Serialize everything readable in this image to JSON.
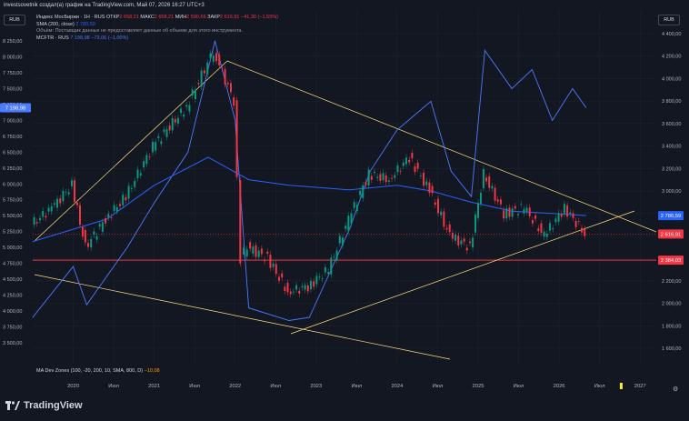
{
  "header": {
    "credit": "investsovetnik создал(а) график на TradingView.com, Май 07, 2026 16:27 UTC+3"
  },
  "legend": {
    "symbol": "Индекс МосБиржи · 1Н · RUS",
    "otkr_label": "ОТКР",
    "otkr_value": "2 658,21",
    "maks_label": "МАКС",
    "maks_value": "2 658,21",
    "min_label": "МИН",
    "min_value": "2 590,66",
    "zakr_label": "ЗАКР",
    "zakr_value": "2 616,91",
    "change": "−41,30 (−1,55%)",
    "sma_label": "SMA (200, close)",
    "sma_value": "2 780,59",
    "volume_note": "Объём: Поставщик данных не предоставляет данные об объеме для этого инструмента.",
    "mcftr_label": "MCFTR · RUS",
    "mcftr_value": "7 198,98",
    "mcftr_change": "−73,06 (−1,00%)"
  },
  "indicator_legend": {
    "label": "MA Dev Zones (100, -20, 200, 10, SMA, 800, D)",
    "value": "−10,08"
  },
  "currency_left": "RUB",
  "currency_right": "RUB",
  "left_axis": [
    "8 250,00",
    "8 000,00",
    "7 750,00",
    "7 500,00",
    "7 250,00",
    "7 000,00",
    "6 750,00",
    "6 500,00",
    "6 250,00",
    "6 000,00",
    "5 750,00",
    "5 500,00",
    "5 250,00",
    "5 000,00",
    "4 750,00",
    "4 500,00",
    "4 250,00",
    "4 000,00",
    "3 750,00",
    "3 500,00"
  ],
  "right_axis": [
    "4 400,00",
    "4 200,00",
    "4 000,00",
    "3 800,00",
    "3 600,00",
    "3 400,00",
    "3 200,00",
    "3 000,00",
    "2 800,00",
    "2 600,00",
    "2 400,00",
    "2 200,00",
    "2 000,00",
    "1 800,00",
    "1 600,00"
  ],
  "time_axis": [
    "2020",
    "Июл",
    "2021",
    "Июл",
    "2022",
    "Июл",
    "2023",
    "Июл",
    "2024",
    "Июл",
    "2025",
    "Июл",
    "2026",
    "Июл",
    "2027"
  ],
  "price_tags": {
    "mcftr_left": "7 198,98",
    "sma": "2 780,59",
    "close": "2 616,91",
    "level": "2 384,03"
  },
  "colors": {
    "up": "#089981",
    "down": "#f23645",
    "sma": "#2962ff",
    "mcftr": "#4c7bff",
    "trend": "#ffe082",
    "level": "#f23645"
  },
  "brand": "TradingView",
  "chart_data": {
    "type": "line",
    "title": "",
    "series": [
      {
        "name": "Индекс МосБиржи",
        "x": [
          "2019-07",
          "2019-10",
          "2020-01",
          "2020-03",
          "2020-06",
          "2020-09",
          "2021-01",
          "2021-06",
          "2021-10",
          "2022-01",
          "2022-02",
          "2022-03",
          "2022-06",
          "2022-09",
          "2022-12",
          "2023-03",
          "2023-06",
          "2023-09",
          "2023-12",
          "2024-03",
          "2024-06",
          "2024-09",
          "2024-12",
          "2025-02",
          "2025-05",
          "2025-08",
          "2025-11",
          "2026-02",
          "2026-05"
        ],
        "values": [
          2700,
          2850,
          3050,
          2500,
          2750,
          2950,
          3400,
          3750,
          4250,
          3800,
          2400,
          2500,
          2400,
          2100,
          2150,
          2300,
          2750,
          3150,
          3100,
          3300,
          3000,
          2600,
          2500,
          3150,
          2800,
          2850,
          2600,
          2850,
          2617
        ]
      },
      {
        "name": "MCFTR",
        "x": [
          "2019-07",
          "2020-01",
          "2020-03",
          "2020-09",
          "2021-01",
          "2021-06",
          "2021-10",
          "2022-01",
          "2022-03",
          "2022-09",
          "2022-12",
          "2023-06",
          "2023-09",
          "2024-01",
          "2024-06",
          "2024-09",
          "2024-12",
          "2025-02",
          "2025-06",
          "2025-09",
          "2025-12",
          "2026-03",
          "2026-05"
        ],
        "values": [
          3900,
          4700,
          4100,
          5000,
          5700,
          6500,
          8250,
          7000,
          4050,
          3850,
          3900,
          5300,
          6200,
          6850,
          7300,
          6200,
          5800,
          8100,
          7500,
          7800,
          7000,
          7500,
          7199
        ]
      },
      {
        "name": "SMA (200, close)",
        "x": [
          "2019-07",
          "2020-06",
          "2021-01",
          "2021-09",
          "2022-03",
          "2022-09",
          "2023-06",
          "2024-01",
          "2024-06",
          "2024-12",
          "2025-06",
          "2025-12",
          "2026-05"
        ],
        "values": [
          2550,
          2750,
          3050,
          3300,
          3100,
          3050,
          3010,
          3050,
          3000,
          2900,
          2820,
          2800,
          2781
        ]
      }
    ],
    "levels": [
      {
        "name": "level",
        "value": 2384.03
      }
    ],
    "ylim_left": [
      3500,
      8250
    ],
    "ylim_right": [
      1600,
      4400
    ],
    "grid": true
  }
}
